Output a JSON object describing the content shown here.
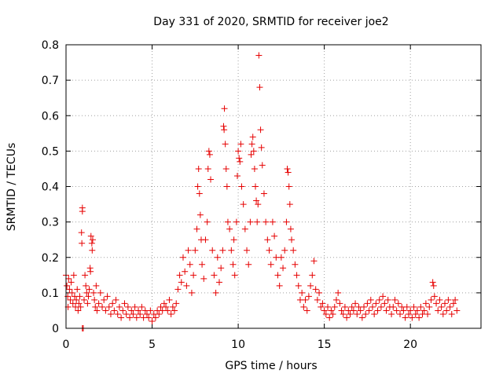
{
  "chart_data": {
    "type": "scatter",
    "title": "Day 331 of 2020, SRMTID for receiver joe2",
    "xlabel": "GPS time / hours",
    "ylabel": "SRMTID / TECUs",
    "xlim": [
      0,
      24.1
    ],
    "ylim": [
      0,
      0.8
    ],
    "xticks": [
      0,
      5,
      10,
      15,
      20
    ],
    "xtick_labels": [
      "0",
      "5",
      "10",
      "15",
      "20"
    ],
    "yticks": [
      0,
      0.1,
      0.2,
      0.3,
      0.4,
      0.5,
      0.6,
      0.7,
      0.8
    ],
    "ytick_labels": [
      "0",
      "0.1",
      "0.2",
      "0.3",
      "0.4",
      "0.5",
      "0.6",
      "0.7",
      "0.8"
    ],
    "grid": true,
    "marker": "+",
    "color": "#e60000",
    "series": [
      {
        "name": "SRMTID joe2",
        "points": [
          [
            0.0,
            0.15
          ],
          [
            0.05,
            0.12
          ],
          [
            0.1,
            0.09
          ],
          [
            0.12,
            0.06
          ],
          [
            0.15,
            0.14
          ],
          [
            0.2,
            0.11
          ],
          [
            0.25,
            0.08
          ],
          [
            0.3,
            0.13
          ],
          [
            0.35,
            0.1
          ],
          [
            0.4,
            0.07
          ],
          [
            0.45,
            0.15
          ],
          [
            0.5,
            0.09
          ],
          [
            0.55,
            0.06
          ],
          [
            0.6,
            0.08
          ],
          [
            0.65,
            0.11
          ],
          [
            0.7,
            0.05
          ],
          [
            0.75,
            0.07
          ],
          [
            0.8,
            0.09
          ],
          [
            0.85,
            0.06
          ],
          [
            0.95,
            0.34
          ],
          [
            0.95,
            0.33
          ],
          [
            0.9,
            0.27
          ],
          [
            0.92,
            0.24
          ],
          [
            0.95,
            0.0
          ],
          [
            1.0,
            0.0
          ],
          [
            1.05,
            0.08
          ],
          [
            1.1,
            0.15
          ],
          [
            1.15,
            0.12
          ],
          [
            1.2,
            0.1
          ],
          [
            1.25,
            0.07
          ],
          [
            1.3,
            0.09
          ],
          [
            1.35,
            0.11
          ],
          [
            1.4,
            0.17
          ],
          [
            1.42,
            0.16
          ],
          [
            1.45,
            0.26
          ],
          [
            1.5,
            0.24
          ],
          [
            1.52,
            0.22
          ],
          [
            1.55,
            0.25
          ],
          [
            1.6,
            0.1
          ],
          [
            1.65,
            0.08
          ],
          [
            1.7,
            0.06
          ],
          [
            1.75,
            0.12
          ],
          [
            1.8,
            0.05
          ],
          [
            1.9,
            0.07
          ],
          [
            2.0,
            0.1
          ],
          [
            2.1,
            0.06
          ],
          [
            2.2,
            0.08
          ],
          [
            2.3,
            0.05
          ],
          [
            2.4,
            0.09
          ],
          [
            2.5,
            0.06
          ],
          [
            2.6,
            0.04
          ],
          [
            2.7,
            0.07
          ],
          [
            2.8,
            0.05
          ],
          [
            2.9,
            0.08
          ],
          [
            3.0,
            0.04
          ],
          [
            3.1,
            0.06
          ],
          [
            3.2,
            0.03
          ],
          [
            3.3,
            0.05
          ],
          [
            3.4,
            0.07
          ],
          [
            3.5,
            0.04
          ],
          [
            3.6,
            0.06
          ],
          [
            3.7,
            0.03
          ],
          [
            3.8,
            0.05
          ],
          [
            3.9,
            0.04
          ],
          [
            4.0,
            0.06
          ],
          [
            4.1,
            0.03
          ],
          [
            4.2,
            0.05
          ],
          [
            4.3,
            0.04
          ],
          [
            4.4,
            0.06
          ],
          [
            4.5,
            0.03
          ],
          [
            4.6,
            0.05
          ],
          [
            4.7,
            0.04
          ],
          [
            4.8,
            0.03
          ],
          [
            4.9,
            0.05
          ],
          [
            5.0,
            0.02
          ],
          [
            5.1,
            0.04
          ],
          [
            5.2,
            0.03
          ],
          [
            5.3,
            0.05
          ],
          [
            5.4,
            0.04
          ],
          [
            5.5,
            0.06
          ],
          [
            5.6,
            0.05
          ],
          [
            5.7,
            0.07
          ],
          [
            5.8,
            0.06
          ],
          [
            5.9,
            0.05
          ],
          [
            6.0,
            0.08
          ],
          [
            6.1,
            0.04
          ],
          [
            6.2,
            0.06
          ],
          [
            6.3,
            0.05
          ],
          [
            6.4,
            0.07
          ],
          [
            6.5,
            0.11
          ],
          [
            6.6,
            0.15
          ],
          [
            6.7,
            0.13
          ],
          [
            6.8,
            0.2
          ],
          [
            6.9,
            0.16
          ],
          [
            7.0,
            0.12
          ],
          [
            7.1,
            0.22
          ],
          [
            7.2,
            0.18
          ],
          [
            7.3,
            0.1
          ],
          [
            7.4,
            0.15
          ],
          [
            7.5,
            0.22
          ],
          [
            7.6,
            0.28
          ],
          [
            7.65,
            0.4
          ],
          [
            7.7,
            0.45
          ],
          [
            7.75,
            0.38
          ],
          [
            7.8,
            0.32
          ],
          [
            7.85,
            0.25
          ],
          [
            7.9,
            0.18
          ],
          [
            8.0,
            0.14
          ],
          [
            8.1,
            0.25
          ],
          [
            8.2,
            0.3
          ],
          [
            8.25,
            0.45
          ],
          [
            8.3,
            0.5
          ],
          [
            8.35,
            0.49
          ],
          [
            8.4,
            0.42
          ],
          [
            8.5,
            0.22
          ],
          [
            8.6,
            0.15
          ],
          [
            8.7,
            0.1
          ],
          [
            8.8,
            0.2
          ],
          [
            8.9,
            0.13
          ],
          [
            9.0,
            0.17
          ],
          [
            9.1,
            0.22
          ],
          [
            9.15,
            0.57
          ],
          [
            9.18,
            0.56
          ],
          [
            9.2,
            0.62
          ],
          [
            9.25,
            0.52
          ],
          [
            9.3,
            0.45
          ],
          [
            9.35,
            0.4
          ],
          [
            9.4,
            0.3
          ],
          [
            9.5,
            0.28
          ],
          [
            9.6,
            0.22
          ],
          [
            9.7,
            0.18
          ],
          [
            9.75,
            0.25
          ],
          [
            9.8,
            0.15
          ],
          [
            9.9,
            0.3
          ],
          [
            9.95,
            0.43
          ],
          [
            10.0,
            0.5
          ],
          [
            10.05,
            0.48
          ],
          [
            10.1,
            0.47
          ],
          [
            10.15,
            0.52
          ],
          [
            10.2,
            0.4
          ],
          [
            10.3,
            0.35
          ],
          [
            10.4,
            0.28
          ],
          [
            10.5,
            0.22
          ],
          [
            10.6,
            0.18
          ],
          [
            10.7,
            0.3
          ],
          [
            10.75,
            0.49
          ],
          [
            10.8,
            0.52
          ],
          [
            10.85,
            0.54
          ],
          [
            10.9,
            0.5
          ],
          [
            10.95,
            0.45
          ],
          [
            11.0,
            0.4
          ],
          [
            11.05,
            0.36
          ],
          [
            11.1,
            0.3
          ],
          [
            11.15,
            0.35
          ],
          [
            11.2,
            0.77
          ],
          [
            11.25,
            0.68
          ],
          [
            11.3,
            0.56
          ],
          [
            11.35,
            0.51
          ],
          [
            11.4,
            0.46
          ],
          [
            11.5,
            0.38
          ],
          [
            11.6,
            0.3
          ],
          [
            11.7,
            0.25
          ],
          [
            11.8,
            0.22
          ],
          [
            11.9,
            0.18
          ],
          [
            12.0,
            0.3
          ],
          [
            12.1,
            0.26
          ],
          [
            12.2,
            0.2
          ],
          [
            12.3,
            0.15
          ],
          [
            12.4,
            0.12
          ],
          [
            12.5,
            0.2
          ],
          [
            12.6,
            0.17
          ],
          [
            12.7,
            0.22
          ],
          [
            12.8,
            0.3
          ],
          [
            12.85,
            0.45
          ],
          [
            12.9,
            0.44
          ],
          [
            12.95,
            0.4
          ],
          [
            13.0,
            0.35
          ],
          [
            13.05,
            0.28
          ],
          [
            13.1,
            0.25
          ],
          [
            13.2,
            0.22
          ],
          [
            13.3,
            0.18
          ],
          [
            13.4,
            0.15
          ],
          [
            13.5,
            0.12
          ],
          [
            13.6,
            0.08
          ],
          [
            13.7,
            0.1
          ],
          [
            13.8,
            0.06
          ],
          [
            13.9,
            0.08
          ],
          [
            14.0,
            0.05
          ],
          [
            14.1,
            0.09
          ],
          [
            14.2,
            0.12
          ],
          [
            14.3,
            0.15
          ],
          [
            14.4,
            0.19
          ],
          [
            14.5,
            0.11
          ],
          [
            14.6,
            0.08
          ],
          [
            14.7,
            0.1
          ],
          [
            14.8,
            0.06
          ],
          [
            14.9,
            0.07
          ],
          [
            15.0,
            0.05
          ],
          [
            15.1,
            0.04
          ],
          [
            15.2,
            0.06
          ],
          [
            15.3,
            0.03
          ],
          [
            15.4,
            0.05
          ],
          [
            15.5,
            0.04
          ],
          [
            15.6,
            0.06
          ],
          [
            15.7,
            0.08
          ],
          [
            15.8,
            0.1
          ],
          [
            15.9,
            0.07
          ],
          [
            16.0,
            0.05
          ],
          [
            16.1,
            0.04
          ],
          [
            16.2,
            0.06
          ],
          [
            16.3,
            0.03
          ],
          [
            16.4,
            0.05
          ],
          [
            16.5,
            0.04
          ],
          [
            16.6,
            0.06
          ],
          [
            16.7,
            0.05
          ],
          [
            16.8,
            0.07
          ],
          [
            16.9,
            0.04
          ],
          [
            17.0,
            0.06
          ],
          [
            17.1,
            0.05
          ],
          [
            17.2,
            0.03
          ],
          [
            17.3,
            0.06
          ],
          [
            17.4,
            0.04
          ],
          [
            17.5,
            0.07
          ],
          [
            17.6,
            0.05
          ],
          [
            17.7,
            0.08
          ],
          [
            17.8,
            0.06
          ],
          [
            17.9,
            0.04
          ],
          [
            18.0,
            0.07
          ],
          [
            18.1,
            0.05
          ],
          [
            18.2,
            0.08
          ],
          [
            18.3,
            0.06
          ],
          [
            18.4,
            0.09
          ],
          [
            18.5,
            0.07
          ],
          [
            18.6,
            0.05
          ],
          [
            18.7,
            0.08
          ],
          [
            18.8,
            0.06
          ],
          [
            18.9,
            0.04
          ],
          [
            19.0,
            0.06
          ],
          [
            19.1,
            0.08
          ],
          [
            19.2,
            0.05
          ],
          [
            19.3,
            0.07
          ],
          [
            19.4,
            0.04
          ],
          [
            19.5,
            0.06
          ],
          [
            19.6,
            0.05
          ],
          [
            19.7,
            0.03
          ],
          [
            19.8,
            0.06
          ],
          [
            19.9,
            0.04
          ],
          [
            20.0,
            0.05
          ],
          [
            20.1,
            0.03
          ],
          [
            20.2,
            0.06
          ],
          [
            20.3,
            0.04
          ],
          [
            20.4,
            0.05
          ],
          [
            20.5,
            0.03
          ],
          [
            20.6,
            0.06
          ],
          [
            20.7,
            0.04
          ],
          [
            20.8,
            0.05
          ],
          [
            20.9,
            0.07
          ],
          [
            21.0,
            0.04
          ],
          [
            21.1,
            0.06
          ],
          [
            21.2,
            0.08
          ],
          [
            21.3,
            0.13
          ],
          [
            21.35,
            0.12
          ],
          [
            21.4,
            0.09
          ],
          [
            21.5,
            0.07
          ],
          [
            21.6,
            0.05
          ],
          [
            21.7,
            0.08
          ],
          [
            21.8,
            0.06
          ],
          [
            21.9,
            0.04
          ],
          [
            22.0,
            0.07
          ],
          [
            22.1,
            0.05
          ],
          [
            22.2,
            0.08
          ],
          [
            22.3,
            0.06
          ],
          [
            22.4,
            0.04
          ],
          [
            22.5,
            0.07
          ],
          [
            22.6,
            0.08
          ],
          [
            22.7,
            0.05
          ]
        ]
      }
    ]
  }
}
